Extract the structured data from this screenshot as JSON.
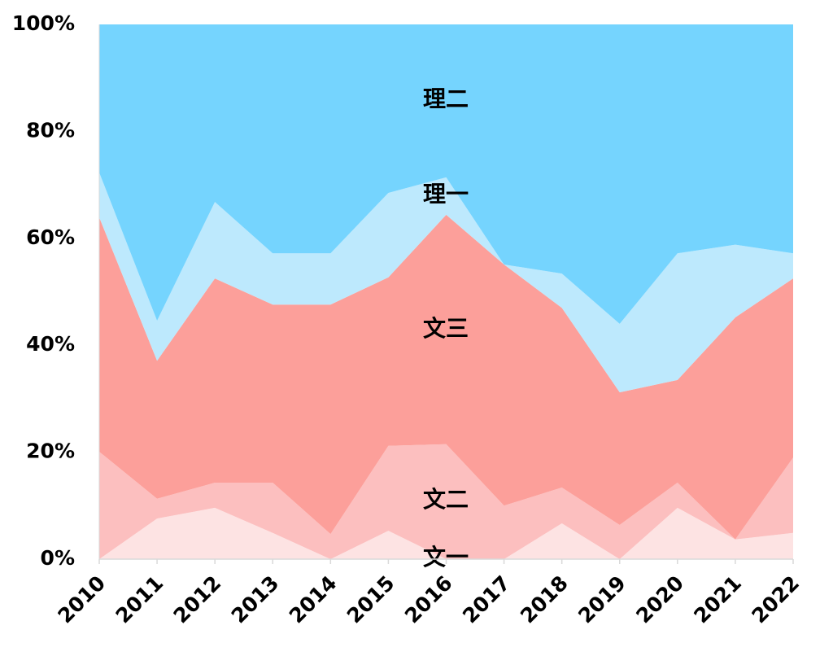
{
  "chart_data": {
    "type": "stacked-area-percent",
    "categories": [
      "2010",
      "2011",
      "2012",
      "2013",
      "2014",
      "2015",
      "2016",
      "2017",
      "2018",
      "2019",
      "2020",
      "2021",
      "2022"
    ],
    "series": [
      {
        "name": "文一",
        "color": "#fde3e3",
        "values": [
          0,
          7.6,
          9.6,
          4.9,
          0,
          5.3,
          0,
          0,
          6.7,
          0,
          9.6,
          3.7,
          4.9
        ]
      },
      {
        "name": "文二",
        "color": "#fcbfbf",
        "values": [
          20.1,
          3.7,
          4.7,
          9.4,
          4.7,
          15.9,
          21.5,
          10.0,
          6.7,
          6.4,
          4.7,
          0,
          14.1
        ]
      },
      {
        "name": "文三",
        "color": "#fc9f9a",
        "values": [
          43.8,
          25.8,
          38.2,
          33.3,
          42.9,
          31.5,
          42.9,
          45.1,
          33.6,
          24.8,
          19.2,
          41.5,
          33.5
        ]
      },
      {
        "name": "理一",
        "color": "#bde9fd",
        "values": [
          8.4,
          7.5,
          14.3,
          9.6,
          9.6,
          15.8,
          7.0,
          0,
          6.4,
          12.8,
          23.7,
          13.6,
          4.7
        ]
      },
      {
        "name": "理二",
        "color": "#75d4fe",
        "values": [
          27.7,
          55.4,
          33.2,
          42.8,
          42.8,
          31.5,
          28.6,
          44.9,
          46.6,
          56.0,
          42.8,
          41.2,
          42.8
        ]
      }
    ],
    "ylim": [
      0,
      100
    ],
    "yticks": [
      {
        "value": 0,
        "label": "0%"
      },
      {
        "value": 20,
        "label": "20%"
      },
      {
        "value": 40,
        "label": "40%"
      },
      {
        "value": 60,
        "label": "60%"
      },
      {
        "value": 80,
        "label": "80%"
      },
      {
        "value": 100,
        "label": "100%"
      }
    ]
  }
}
